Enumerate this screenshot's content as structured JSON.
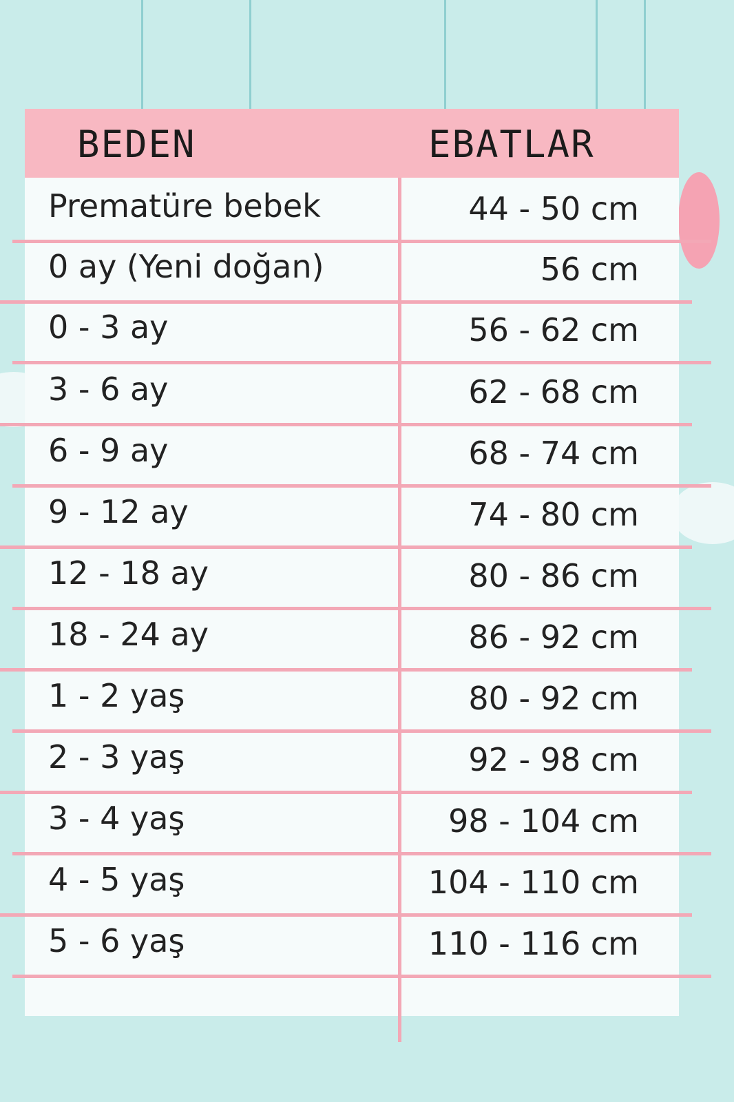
{
  "header": {
    "col_size": "BEDEN",
    "col_dims": "EBATLAR"
  },
  "colors": {
    "background": "#c9ecea",
    "header": "#f8b8c2",
    "lines": "#f3a8b6"
  },
  "rows": [
    {
      "size": "Prematüre bebek",
      "dims": "44 - 50 cm"
    },
    {
      "size": "0 ay (Yeni doğan)",
      "dims": "56 cm"
    },
    {
      "size": "0 - 3 ay",
      "dims": "56 - 62 cm"
    },
    {
      "size": "3 - 6 ay",
      "dims": "62 - 68 cm"
    },
    {
      "size": "6 - 9 ay",
      "dims": "68 - 74 cm"
    },
    {
      "size": "9 - 12 ay",
      "dims": "74 - 80 cm"
    },
    {
      "size": "12 - 18 ay",
      "dims": "80 - 86 cm"
    },
    {
      "size": "18 - 24 ay",
      "dims": "86 - 92 cm"
    },
    {
      "size": "1 - 2 yaş",
      "dims": "80 - 92 cm"
    },
    {
      "size": "2 - 3 yaş",
      "dims": "92 - 98 cm"
    },
    {
      "size": "3 - 4 yaş",
      "dims": "98 - 104 cm"
    },
    {
      "size": "4 - 5 yaş",
      "dims": "104 - 110 cm"
    },
    {
      "size": "5 - 6 yaş",
      "dims": "110 - 116 cm"
    }
  ]
}
